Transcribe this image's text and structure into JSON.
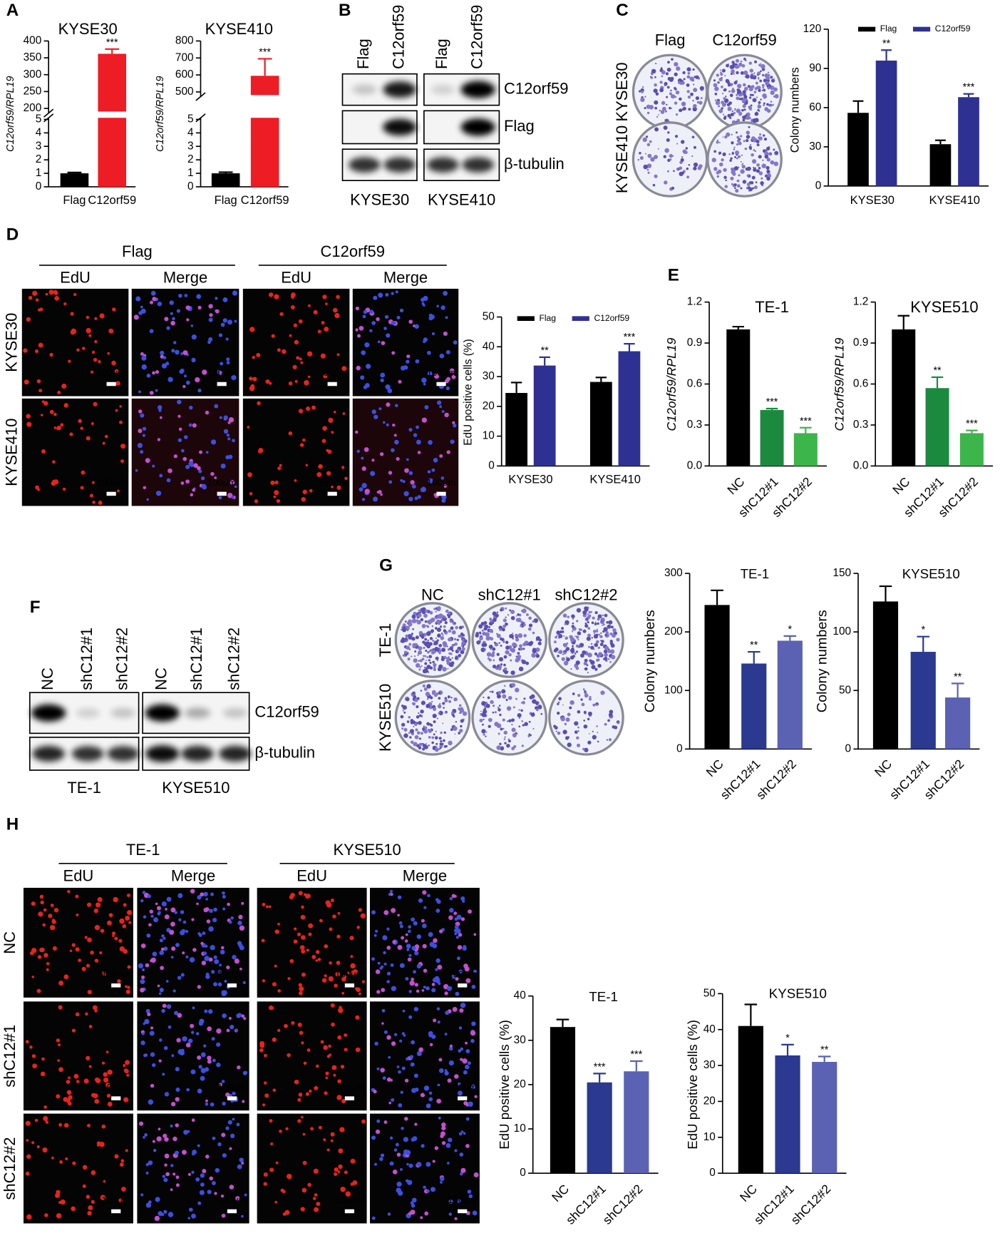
{
  "panel_letters": [
    "A",
    "B",
    "C",
    "D",
    "E",
    "F",
    "G",
    "H"
  ],
  "blot_b": {
    "lanes": [
      "Flag",
      "C12orf59"
    ],
    "rows": [
      "C12orf59",
      "Flag",
      "β-tubulin"
    ],
    "groups": [
      "KYSE30",
      "KYSE410"
    ]
  },
  "colony_c": {
    "columns": [
      "Flag",
      "C12orf59"
    ],
    "rows": [
      "KYSE30",
      "KYSE410"
    ]
  },
  "edu_d": {
    "groups": [
      "Flag",
      "C12orf59"
    ],
    "columns": [
      "EdU",
      "Merge"
    ],
    "rows": [
      "KYSE30",
      "KYSE410"
    ],
    "scale_bar": "100μm"
  },
  "blot_f": {
    "lanes": [
      "NC",
      "shC12#1",
      "shC12#2"
    ],
    "rows": [
      "C12orf59",
      "β-tubulin"
    ],
    "groups": [
      "TE-1",
      "KYSE510"
    ]
  },
  "colony_g": {
    "columns": [
      "NC",
      "shC12#1",
      "shC12#2"
    ],
    "rows": [
      "TE-1",
      "KYSE510"
    ]
  },
  "edu_h": {
    "groups": [
      "TE-1",
      "KYSE510"
    ],
    "columns": [
      "EdU",
      "Merge"
    ],
    "rows": [
      "NC",
      "shC12#1",
      "shC12#2"
    ],
    "scale_bar": "100μm"
  },
  "chart_data": [
    {
      "type": "bar",
      "title": "KYSE30",
      "y_label": "C12orf59/RPL19",
      "categories": [
        "Flag",
        "C12orf59"
      ],
      "values": [
        1,
        362
      ],
      "errors": [
        0.06,
        14
      ],
      "colors": [
        "#000000",
        "#ee1c24"
      ],
      "annotations": [
        null,
        "***"
      ],
      "ylim": [
        0,
        400
      ],
      "yticks": [
        0,
        1,
        2,
        3,
        4,
        5,
        200,
        250,
        300,
        350,
        400
      ],
      "y_break": [
        5,
        200
      ]
    },
    {
      "type": "bar",
      "title": "KYSE410",
      "y_label": "C12orf59/RPL19",
      "categories": [
        "Flag",
        "C12orf59"
      ],
      "values": [
        1,
        595
      ],
      "errors": [
        0.08,
        100
      ],
      "colors": [
        "#000000",
        "#ee1c24"
      ],
      "annotations": [
        null,
        "***"
      ],
      "ylim": [
        0,
        800
      ],
      "yticks": [
        0,
        1,
        2,
        3,
        4,
        5,
        500,
        600,
        700,
        800
      ],
      "y_break": [
        5,
        500
      ]
    },
    {
      "type": "grouped_bar",
      "y_label": "Colony numbers",
      "categories": [
        "KYSE30",
        "KYSE410"
      ],
      "series": [
        {
          "name": "Flag",
          "color": "#000000",
          "values": [
            56,
            32
          ],
          "errors": [
            9,
            3
          ],
          "annotations": [
            null,
            null
          ]
        },
        {
          "name": "C12orf59",
          "color": "#2e3192",
          "values": [
            96,
            68
          ],
          "errors": [
            8,
            2.5
          ],
          "annotations": [
            "**",
            "***"
          ]
        }
      ],
      "ylim": [
        0,
        120
      ],
      "yticks": [
        0,
        30,
        60,
        90,
        120
      ],
      "legend": "top"
    },
    {
      "type": "grouped_bar",
      "y_label": "EdU positive cells (%)",
      "categories": [
        "KYSE30",
        "KYSE410"
      ],
      "series": [
        {
          "name": "Flag",
          "color": "#000000",
          "values": [
            24.5,
            28.2
          ],
          "errors": [
            3.5,
            1.5
          ],
          "annotations": [
            null,
            null
          ]
        },
        {
          "name": "C12orf59",
          "color": "#2e3192",
          "values": [
            33.7,
            38.5
          ],
          "errors": [
            2.8,
            2.5
          ],
          "annotations": [
            "**",
            "***"
          ]
        }
      ],
      "ylim": [
        0,
        50
      ],
      "yticks": [
        0,
        10,
        20,
        30,
        40,
        50
      ],
      "legend": "top"
    },
    {
      "type": "bar",
      "title": "TE-1",
      "y_label": "C12orf59/RPL19",
      "categories": [
        "NC",
        "shC12#1",
        "shC12#2"
      ],
      "values": [
        1,
        0.41,
        0.24
      ],
      "errors": [
        0.02,
        0.01,
        0.04
      ],
      "colors": [
        "#000000",
        "#1b8a3f",
        "#3cb54a"
      ],
      "annotations": [
        null,
        "***",
        "***"
      ],
      "ylim": [
        0,
        1.2
      ],
      "yticks": [
        {
          "value": 0,
          "label": "0.0"
        },
        0.3,
        0.6,
        0.9,
        1.2
      ]
    },
    {
      "type": "bar",
      "title": "KYSE510",
      "y_label": "C12orf59/RPL19",
      "categories": [
        "NC",
        "shC12#1",
        "shC12#2"
      ],
      "values": [
        1,
        0.57,
        0.24
      ],
      "errors": [
        0.1,
        0.08,
        0.02
      ],
      "colors": [
        "#000000",
        "#1b8a3f",
        "#3cb54a"
      ],
      "annotations": [
        null,
        "**",
        "***"
      ],
      "ylim": [
        0,
        1.2
      ],
      "yticks": [
        {
          "value": 0,
          "label": "0.0"
        },
        0.3,
        0.6,
        0.9,
        1.2
      ]
    },
    {
      "type": "bar",
      "title": "TE-1",
      "y_label": "Colony numbers",
      "categories": [
        "NC",
        "shC12#1",
        "shC12#2"
      ],
      "values": [
        246,
        146,
        185
      ],
      "errors": [
        25,
        20,
        8
      ],
      "colors": [
        "#000000",
        "#2b3990",
        "#5b62b3"
      ],
      "annotations": [
        null,
        "**",
        "*"
      ],
      "ylim": [
        0,
        300
      ],
      "yticks": [
        0,
        100,
        200,
        300
      ]
    },
    {
      "type": "bar",
      "title": "KYSE510",
      "y_label": "Colony numbers",
      "categories": [
        "NC",
        "shC12#1",
        "shC12#2"
      ],
      "values": [
        126,
        83,
        44
      ],
      "errors": [
        13,
        13,
        12
      ],
      "colors": [
        "#000000",
        "#2b3990",
        "#5b62b3"
      ],
      "annotations": [
        null,
        "*",
        "**"
      ],
      "ylim": [
        0,
        150
      ],
      "yticks": [
        0,
        50,
        100,
        150
      ]
    },
    {
      "type": "bar",
      "title": "TE-1",
      "y_label": "EdU positive cells (%)",
      "categories": [
        "NC",
        "shC12#1",
        "shC12#2"
      ],
      "values": [
        33,
        20.5,
        23
      ],
      "errors": [
        1.7,
        2,
        2.3
      ],
      "colors": [
        "#000000",
        "#2b3990",
        "#5b62b3"
      ],
      "annotations": [
        null,
        "***",
        "***"
      ],
      "ylim": [
        0,
        40
      ],
      "yticks": [
        0,
        10,
        20,
        30,
        40
      ]
    },
    {
      "type": "bar",
      "title": "KYSE510",
      "y_label": "EdU positive cells (%)",
      "categories": [
        "NC",
        "shC12#1",
        "shC12#2"
      ],
      "values": [
        41,
        32.8,
        31
      ],
      "errors": [
        6,
        3,
        1.5
      ],
      "colors": [
        "#000000",
        "#2b3990",
        "#5b62b3"
      ],
      "annotations": [
        null,
        "*",
        "**"
      ],
      "ylim": [
        0,
        50
      ],
      "yticks": [
        0,
        10,
        20,
        30,
        40,
        50
      ]
    }
  ]
}
